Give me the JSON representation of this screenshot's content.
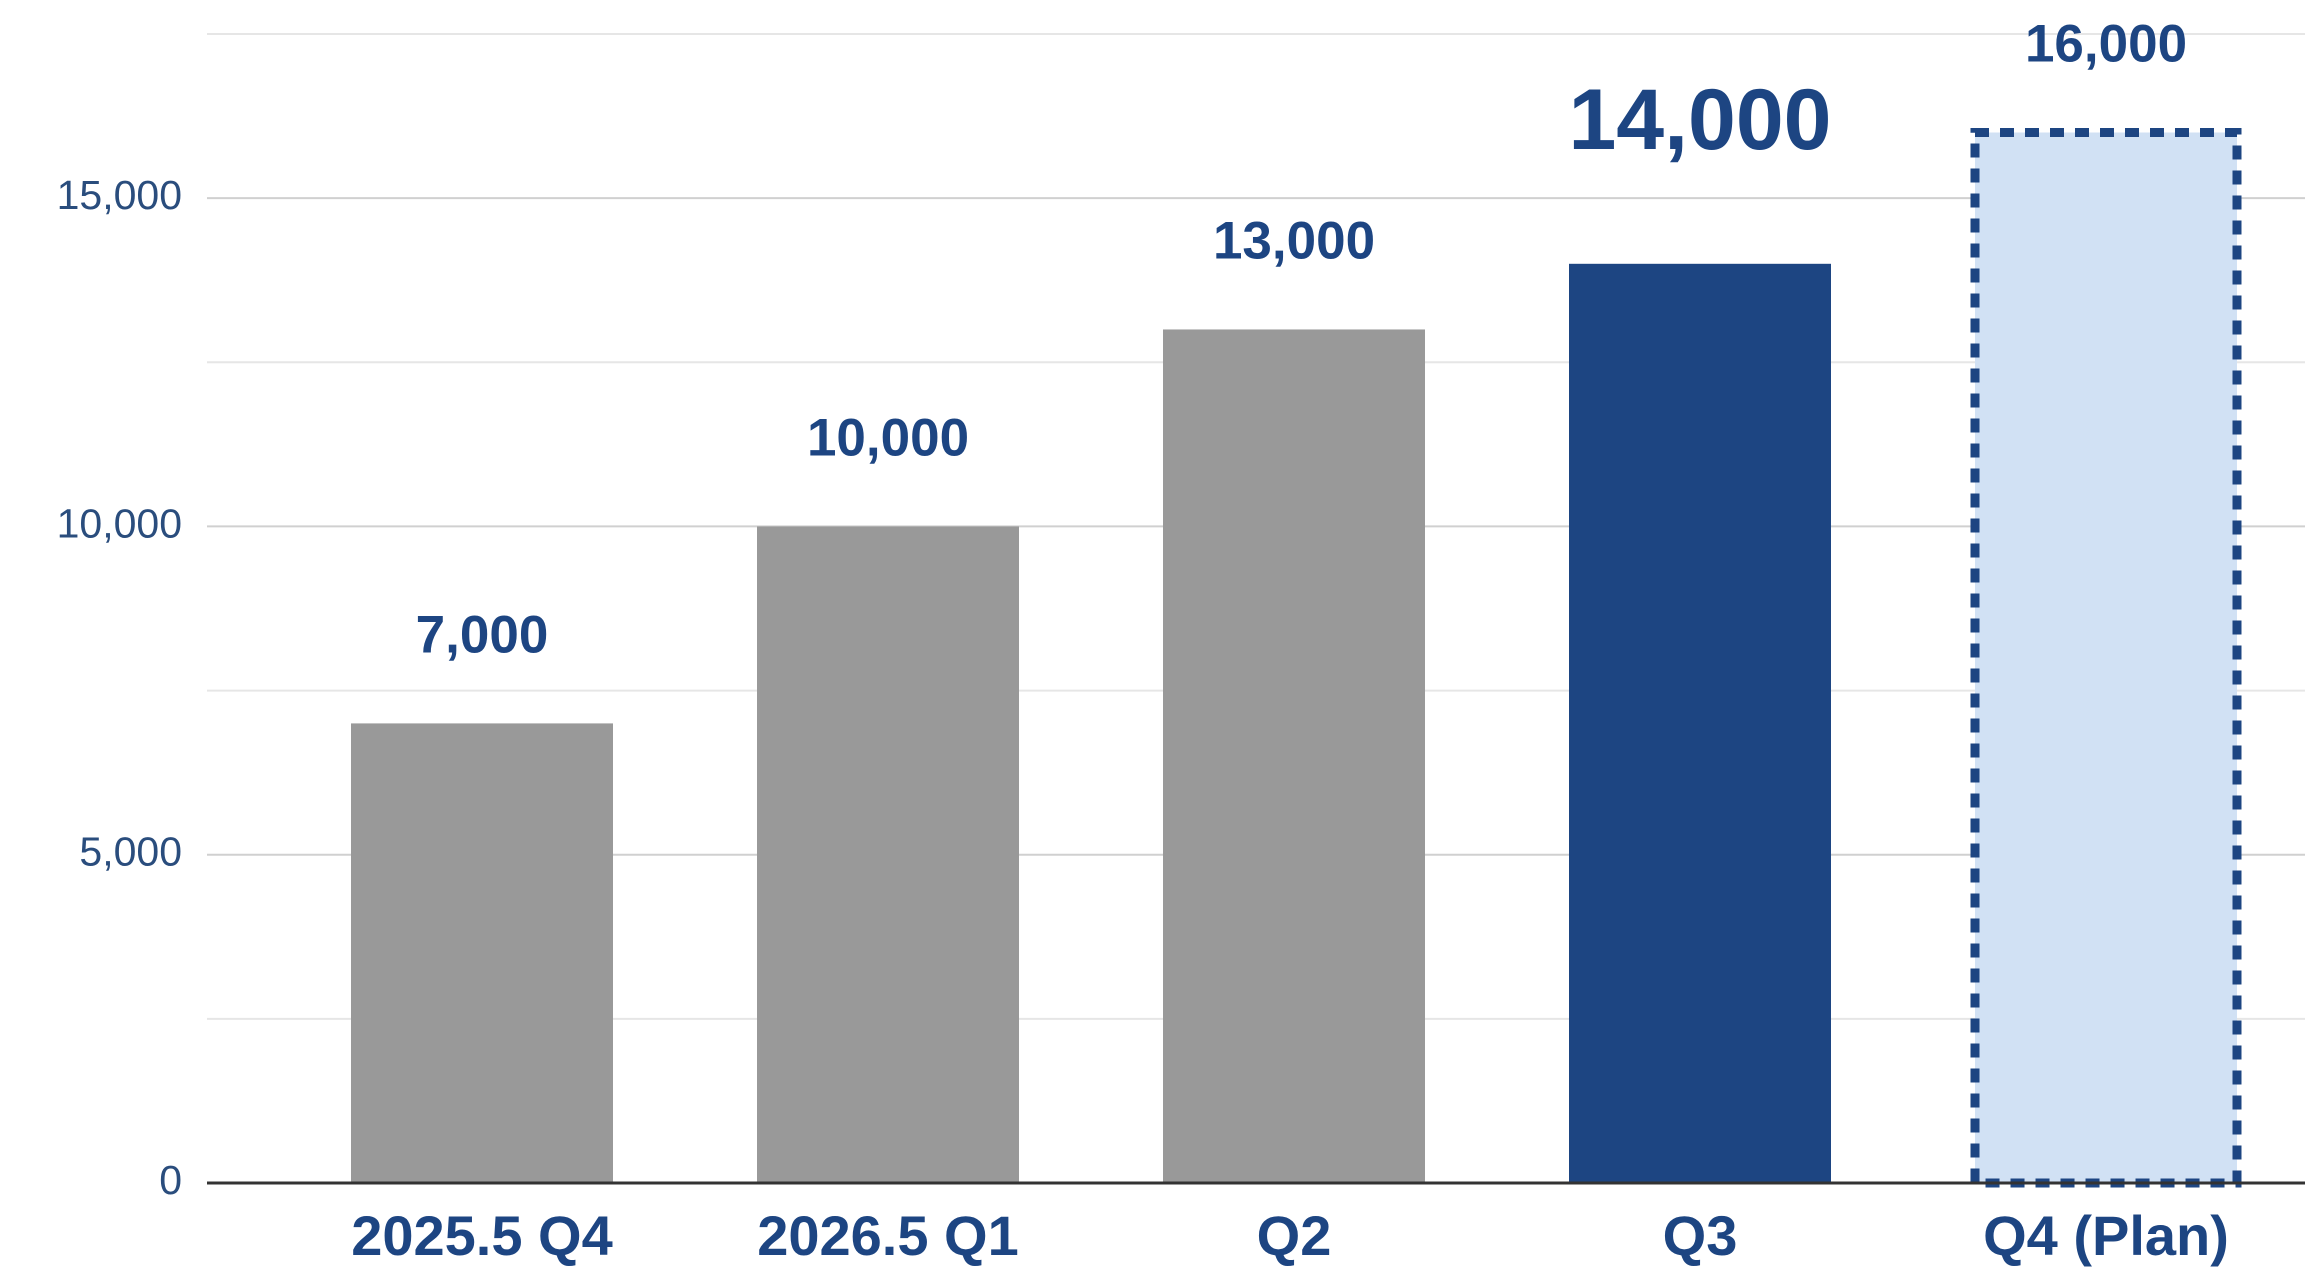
{
  "chart_data": {
    "type": "bar",
    "categories": [
      "2025.5 Q4",
      "2026.5 Q1",
      "Q2",
      "Q3",
      "Q4 (Plan)"
    ],
    "values": [
      7000,
      10000,
      13000,
      14000,
      16000
    ],
    "value_labels": [
      "7,000",
      "10,000",
      "13,000",
      "14,000",
      "16,000"
    ],
    "colors": [
      "#999999",
      "#999999",
      "#999999",
      "#1d4582",
      "#d1e1f4"
    ],
    "dashed": [
      false,
      false,
      false,
      false,
      true
    ],
    "highlight": 3,
    "ylim": [
      0,
      17500
    ],
    "yticks": [
      0,
      {
        "value": 5000,
        "label": "5,000"
      },
      {
        "value": 10000,
        "label": "10,000"
      },
      {
        "value": 15000,
        "label": "15,000"
      }
    ],
    "minor_yticks": [
      2500,
      7500,
      12500,
      17500
    ],
    "grid": true
  }
}
